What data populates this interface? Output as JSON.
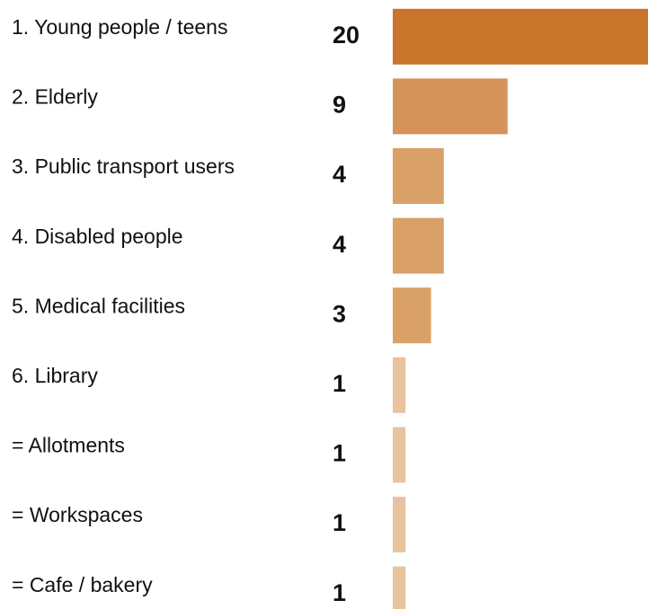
{
  "chart_data": {
    "type": "bar",
    "orientation": "horizontal",
    "title": "",
    "xlabel": "",
    "ylabel": "",
    "categories": [
      "1. Young people / teens",
      "2. Elderly",
      "3. Public transport users",
      "4. Disabled people",
      "5. Medical facilities",
      "6. Library",
      "= Allotments",
      "= Workspaces",
      "= Cafe / bakery"
    ],
    "values": [
      20,
      9,
      4,
      4,
      3,
      1,
      1,
      1,
      1
    ],
    "value_labels": [
      "20",
      "9",
      "4",
      "4",
      "3",
      "1",
      "1",
      "1",
      "1"
    ],
    "xlim": [
      0,
      20
    ],
    "grid": false,
    "legend": "none",
    "colors": [
      "#C8752B",
      "#D4935A",
      "#D9A067",
      "#D9A067",
      "#D9A067",
      "#E8C3A0",
      "#E8C3A0",
      "#E8C3A0",
      "#E8C3A0"
    ]
  }
}
